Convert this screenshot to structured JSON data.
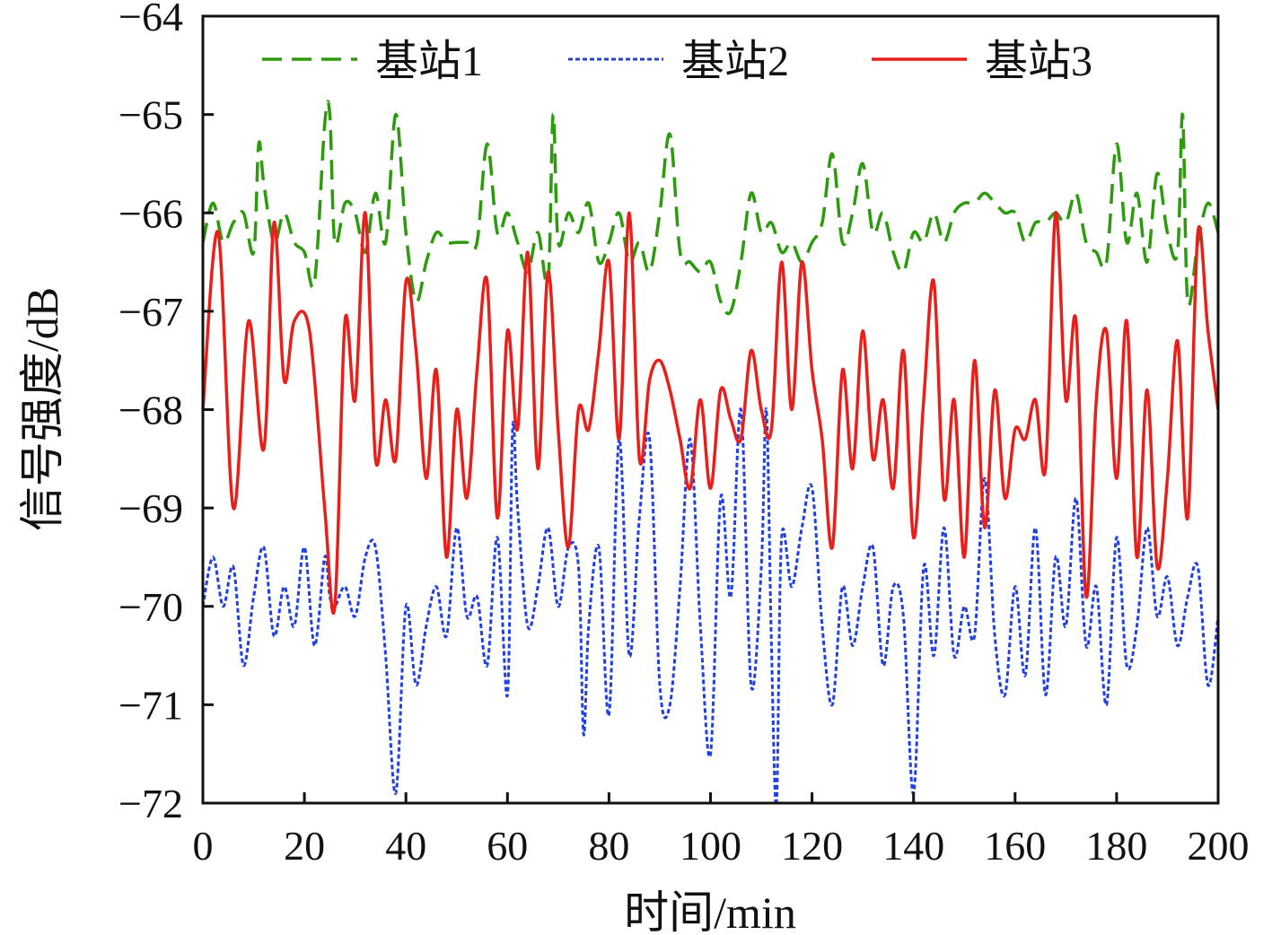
{
  "chart_data": {
    "type": "line",
    "title": "",
    "xlabel": "时间/min",
    "ylabel": "信号强度/dB",
    "xlim": [
      0,
      200
    ],
    "ylim": [
      -72,
      -64
    ],
    "xticks": [
      0,
      20,
      40,
      60,
      80,
      100,
      120,
      140,
      160,
      180,
      200
    ],
    "yticks": [
      -72,
      -71,
      -70,
      -69,
      -68,
      -67,
      -66,
      -65,
      -64
    ],
    "xtick_labels": [
      "0",
      "20",
      "40",
      "60",
      "80",
      "100",
      "120",
      "140",
      "160",
      "180",
      "200"
    ],
    "ytick_labels": [
      "−72",
      "−71",
      "−70",
      "−69",
      "−68",
      "−67",
      "−66",
      "−65",
      "−64"
    ],
    "grid": false,
    "legend_position": "top",
    "series": [
      {
        "name": "基站1",
        "color": "#2e9a0e",
        "style": "dashed",
        "x": [
          0,
          2,
          4,
          6,
          8,
          10,
          11,
          12,
          14,
          16,
          18,
          20,
          22,
          24,
          25,
          26,
          28,
          30,
          32,
          34,
          36,
          38,
          40,
          42,
          44,
          46,
          48,
          50,
          52,
          54,
          56,
          58,
          60,
          62,
          64,
          66,
          68,
          69,
          70,
          72,
          74,
          76,
          78,
          80,
          82,
          84,
          86,
          88,
          90,
          92,
          94,
          96,
          98,
          100,
          102,
          104,
          106,
          108,
          110,
          112,
          114,
          116,
          118,
          120,
          122,
          124,
          126,
          128,
          130,
          132,
          134,
          136,
          138,
          140,
          142,
          144,
          146,
          148,
          150,
          152,
          154,
          156,
          158,
          160,
          162,
          164,
          166,
          168,
          170,
          172,
          174,
          176,
          178,
          180,
          182,
          184,
          186,
          188,
          190,
          192,
          193,
          194,
          196,
          198,
          200
        ],
        "values": [
          -66.3,
          -65.9,
          -66.3,
          -66.1,
          -66.0,
          -66.4,
          -65.3,
          -65.7,
          -66.3,
          -66.0,
          -66.3,
          -66.4,
          -66.7,
          -65.1,
          -65.0,
          -66.3,
          -65.9,
          -66.0,
          -66.4,
          -65.8,
          -66.3,
          -65.0,
          -66.2,
          -66.9,
          -66.5,
          -66.2,
          -66.3,
          -66.3,
          -66.3,
          -66.3,
          -65.3,
          -66.2,
          -66.0,
          -66.3,
          -66.6,
          -66.2,
          -66.7,
          -65.0,
          -66.3,
          -66.0,
          -66.2,
          -65.9,
          -66.5,
          -66.3,
          -66.0,
          -66.5,
          -66.3,
          -66.6,
          -66.0,
          -65.2,
          -66.4,
          -66.5,
          -66.6,
          -66.5,
          -66.9,
          -67.0,
          -66.5,
          -65.8,
          -66.2,
          -66.1,
          -66.4,
          -66.3,
          -66.5,
          -66.3,
          -66.1,
          -65.4,
          -66.3,
          -66.0,
          -65.5,
          -66.2,
          -66.0,
          -66.4,
          -66.6,
          -66.2,
          -66.3,
          -66.0,
          -66.3,
          -66.0,
          -65.9,
          -65.9,
          -65.8,
          -65.9,
          -66.0,
          -66.0,
          -66.3,
          -66.1,
          -66.1,
          -66.0,
          -66.1,
          -65.8,
          -66.3,
          -66.4,
          -66.5,
          -65.3,
          -66.3,
          -65.8,
          -66.5,
          -65.6,
          -66.2,
          -66.4,
          -65.0,
          -66.9,
          -66.3,
          -65.9,
          -66.2
        ]
      },
      {
        "name": "基站2",
        "color": "#1f3fe0",
        "style": "dotted",
        "x": [
          0,
          2,
          4,
          6,
          8,
          10,
          12,
          14,
          16,
          18,
          20,
          22,
          24,
          25,
          26,
          28,
          30,
          32,
          34,
          36,
          38,
          40,
          42,
          44,
          46,
          48,
          50,
          52,
          54,
          56,
          58,
          60,
          61,
          62,
          64,
          66,
          68,
          70,
          72,
          74,
          75,
          76,
          78,
          80,
          82,
          84,
          86,
          88,
          90,
          92,
          94,
          96,
          98,
          100,
          102,
          104,
          106,
          108,
          110,
          111,
          112,
          113,
          114,
          116,
          118,
          120,
          122,
          124,
          126,
          128,
          130,
          132,
          134,
          136,
          138,
          140,
          142,
          144,
          146,
          148,
          150,
          152,
          154,
          156,
          158,
          160,
          162,
          164,
          166,
          168,
          170,
          172,
          174,
          176,
          178,
          180,
          182,
          184,
          186,
          188,
          190,
          192,
          194,
          196,
          198,
          200
        ],
        "values": [
          -70.0,
          -69.5,
          -70.0,
          -69.6,
          -70.6,
          -69.9,
          -69.4,
          -70.3,
          -69.8,
          -70.2,
          -69.4,
          -70.4,
          -69.5,
          -69.9,
          -70.0,
          -69.8,
          -70.1,
          -69.5,
          -69.4,
          -70.5,
          -71.9,
          -70.0,
          -70.8,
          -70.2,
          -69.8,
          -70.3,
          -69.2,
          -70.1,
          -69.9,
          -70.6,
          -69.3,
          -70.9,
          -68.2,
          -69.0,
          -70.2,
          -69.8,
          -69.2,
          -70.0,
          -69.4,
          -69.6,
          -71.3,
          -70.2,
          -69.4,
          -71.1,
          -68.3,
          -70.5,
          -69.1,
          -68.3,
          -70.8,
          -71.0,
          -69.8,
          -68.3,
          -70.2,
          -71.5,
          -68.9,
          -69.9,
          -68.0,
          -70.8,
          -69.6,
          -68.0,
          -70.4,
          -72.0,
          -69.3,
          -69.8,
          -69.2,
          -68.8,
          -70.2,
          -71.0,
          -69.8,
          -70.4,
          -69.8,
          -69.4,
          -70.6,
          -69.8,
          -70.1,
          -71.9,
          -69.6,
          -70.5,
          -69.2,
          -70.5,
          -70.0,
          -70.3,
          -68.7,
          -70.3,
          -70.9,
          -69.8,
          -70.7,
          -69.2,
          -70.9,
          -69.5,
          -70.2,
          -68.9,
          -70.4,
          -69.8,
          -71.0,
          -69.3,
          -70.6,
          -70.2,
          -69.2,
          -70.1,
          -69.7,
          -70.4,
          -69.9,
          -69.6,
          -70.8,
          -70.1
        ]
      },
      {
        "name": "基站3",
        "color": "#e8201b",
        "style": "solid",
        "x": [
          0,
          3,
          6,
          9,
          12,
          14,
          16,
          18,
          21,
          24,
          26,
          28,
          30,
          32,
          34,
          36,
          38,
          40,
          42,
          44,
          46,
          48,
          50,
          52,
          54,
          56,
          58,
          60,
          62,
          64,
          66,
          68,
          70,
          72,
          74,
          76,
          78,
          80,
          82,
          84,
          86,
          88,
          90,
          92,
          94,
          96,
          98,
          100,
          102,
          104,
          106,
          108,
          110,
          112,
          114,
          116,
          118,
          120,
          122,
          124,
          126,
          128,
          130,
          132,
          134,
          136,
          138,
          140,
          142,
          144,
          146,
          148,
          150,
          152,
          154,
          156,
          158,
          160,
          162,
          164,
          166,
          168,
          170,
          172,
          174,
          176,
          178,
          180,
          182,
          184,
          186,
          188,
          190,
          192,
          194,
          196,
          198,
          200
        ],
        "values": [
          -68.0,
          -66.2,
          -69.0,
          -67.1,
          -68.4,
          -66.1,
          -67.7,
          -67.1,
          -67.2,
          -69.0,
          -70.0,
          -67.1,
          -67.9,
          -66.0,
          -68.5,
          -67.9,
          -68.5,
          -66.7,
          -67.4,
          -68.7,
          -67.6,
          -69.5,
          -68.0,
          -68.9,
          -67.6,
          -66.7,
          -69.1,
          -67.2,
          -68.2,
          -66.4,
          -68.6,
          -66.6,
          -68.2,
          -69.4,
          -68.0,
          -68.2,
          -67.4,
          -66.5,
          -68.3,
          -66.0,
          -68.5,
          -67.7,
          -67.5,
          -67.8,
          -68.3,
          -68.8,
          -67.9,
          -68.8,
          -67.8,
          -68.1,
          -68.3,
          -67.4,
          -68.0,
          -68.2,
          -66.5,
          -68.0,
          -66.5,
          -67.6,
          -68.3,
          -69.4,
          -67.6,
          -68.6,
          -67.2,
          -68.5,
          -67.9,
          -68.8,
          -67.4,
          -69.3,
          -67.9,
          -66.7,
          -68.9,
          -67.9,
          -69.5,
          -67.5,
          -69.2,
          -67.8,
          -68.9,
          -68.2,
          -68.3,
          -67.9,
          -68.6,
          -66.0,
          -67.9,
          -67.1,
          -69.9,
          -67.9,
          -67.2,
          -68.7,
          -67.1,
          -69.5,
          -67.8,
          -69.6,
          -68.7,
          -67.3,
          -69.1,
          -66.2,
          -67.2,
          -68.0
        ]
      }
    ]
  }
}
